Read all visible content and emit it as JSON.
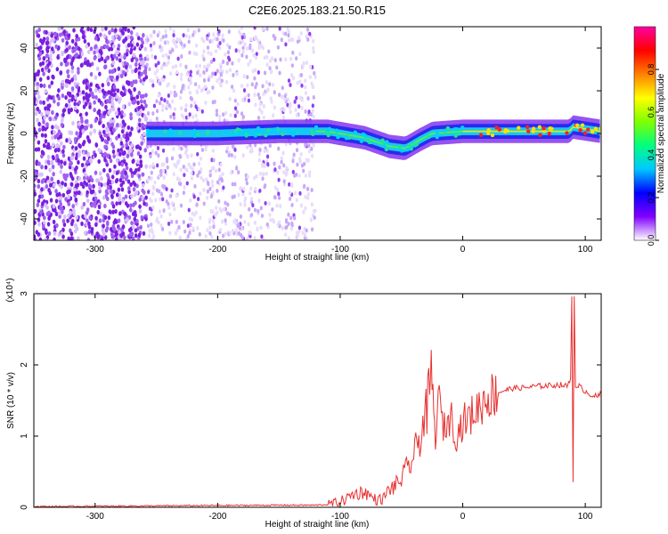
{
  "title": "C2E6.2025.183.21.50.R15",
  "chart_data": [
    {
      "type": "heatmap",
      "xlabel": "Height of straight line (km)",
      "ylabel": "Frequency (Hz)",
      "xlim": [
        -350,
        113
      ],
      "ylim": [
        -50,
        50
      ],
      "xticks": [
        -300,
        -200,
        -100,
        0,
        100
      ],
      "yticks": [
        -40,
        -20,
        0,
        20,
        40
      ],
      "colorbar": {
        "label": "Normalized spectral amplitude",
        "range": [
          0,
          1
        ],
        "ticks": [
          "0.0",
          "0.2",
          "0.4",
          "0.6",
          "0.8"
        ],
        "colors": [
          "#ffffff",
          "#8000ff",
          "#0000ff",
          "#00c8ff",
          "#00ff7f",
          "#7fff00",
          "#ffff00",
          "#ff8000",
          "#ff0000",
          "#ff00a0"
        ]
      },
      "noise_region": {
        "x_from": -350,
        "x_to": -120,
        "dense_to": -258
      },
      "ridge": [
        {
          "x": -258,
          "y": 0
        },
        {
          "x": -200,
          "y": 0
        },
        {
          "x": -150,
          "y": 1
        },
        {
          "x": -110,
          "y": 1
        },
        {
          "x": -80,
          "y": -2
        },
        {
          "x": -60,
          "y": -6
        },
        {
          "x": -47,
          "y": -7
        },
        {
          "x": -35,
          "y": -3
        },
        {
          "x": -25,
          "y": 0
        },
        {
          "x": 0,
          "y": 1
        },
        {
          "x": 50,
          "y": 1
        },
        {
          "x": 87,
          "y": 1
        },
        {
          "x": 90,
          "y": 3
        },
        {
          "x": 113,
          "y": 1
        }
      ]
    },
    {
      "type": "line",
      "xlabel": "Height of straight line (km)",
      "ylabel": "SNR (10 * v/v)",
      "y_multiplier": "(x10⁴)",
      "xlim": [
        -350,
        113
      ],
      "ylim": [
        0,
        3
      ],
      "xticks": [
        -300,
        -200,
        -100,
        0,
        100
      ],
      "yticks": [
        0,
        1,
        2,
        3
      ],
      "color": "#e83030",
      "series": [
        {
          "x": [
            -350,
            -250,
            -150,
            -120,
            -110,
            -100,
            -95,
            -90,
            -85,
            -80,
            -75,
            -70,
            -65,
            -60,
            -55,
            -50,
            -45,
            -40,
            -35,
            -30,
            -27,
            -25,
            -23,
            -20,
            -15,
            -10,
            -5,
            0,
            5,
            10,
            15,
            20,
            30,
            40,
            50,
            60,
            70,
            80,
            85,
            88,
            89,
            90,
            91,
            92,
            93,
            95,
            100,
            105,
            110,
            113
          ],
          "y": [
            0.01,
            0.02,
            0.03,
            0.03,
            0.04,
            0.08,
            0.12,
            0.18,
            0.2,
            0.22,
            0.15,
            0.1,
            0.12,
            0.25,
            0.3,
            0.4,
            0.55,
            0.7,
            1.0,
            1.3,
            1.6,
            1.9,
            1.0,
            1.5,
            1.1,
            1.3,
            1.0,
            1.2,
            1.25,
            1.35,
            1.45,
            1.55,
            1.62,
            1.67,
            1.68,
            1.7,
            1.71,
            1.72,
            1.7,
            1.8,
            3.0,
            0.35,
            3.0,
            1.7,
            1.65,
            1.7,
            1.63,
            1.58,
            1.55,
            1.6
          ]
        }
      ]
    }
  ]
}
